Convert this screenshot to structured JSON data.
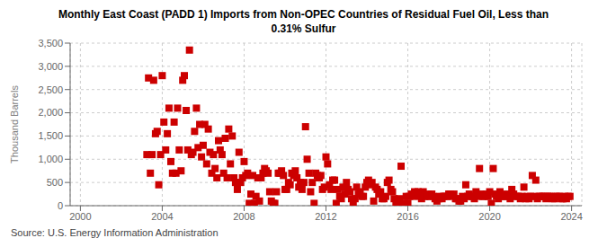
{
  "chart_data": {
    "type": "scatter",
    "title": "Monthly East Coast (PADD 1) Imports from Non-OPEC Countries of Residual Fuel Oil, Less than\n0.31% Sulfur",
    "ylabel": "Thousand Barrels",
    "source": "Source: U.S. Energy Information Administration",
    "color": "#cc0000",
    "marker": "square",
    "grid": true,
    "xlim": [
      1999.5,
      2024.5
    ],
    "xticks": [
      2000,
      2004,
      2008,
      2012,
      2016,
      2020,
      2024
    ],
    "ylim": [
      0,
      3500
    ],
    "yticks": [
      0,
      500,
      {
        "value": 1000,
        "label": "1,000"
      },
      {
        "value": 1500,
        "label": "1,500"
      },
      {
        "value": 2000,
        "label": "2,000"
      },
      {
        "value": 2500,
        "label": "2,500"
      },
      {
        "value": 3000,
        "label": "3,000"
      },
      {
        "value": 3500,
        "label": "3,500"
      }
    ],
    "x": [
      2003.25,
      2003.33,
      2003.42,
      2003.5,
      2003.58,
      2003.67,
      2003.75,
      2003.83,
      2003.92,
      2004.0,
      2004.08,
      2004.17,
      2004.25,
      2004.33,
      2004.42,
      2004.5,
      2004.58,
      2004.67,
      2004.75,
      2004.83,
      2004.92,
      2005.0,
      2005.08,
      2005.17,
      2005.25,
      2005.33,
      2005.42,
      2005.5,
      2005.58,
      2005.67,
      2005.75,
      2005.83,
      2005.92,
      2006.0,
      2006.08,
      2006.17,
      2006.25,
      2006.33,
      2006.42,
      2006.5,
      2006.58,
      2006.67,
      2006.75,
      2006.83,
      2006.92,
      2007.0,
      2007.08,
      2007.17,
      2007.25,
      2007.33,
      2007.42,
      2007.5,
      2007.58,
      2007.67,
      2007.75,
      2007.83,
      2007.92,
      2008.0,
      2008.08,
      2008.17,
      2008.25,
      2008.33,
      2008.42,
      2008.5,
      2008.58,
      2008.67,
      2008.75,
      2008.83,
      2008.92,
      2009.0,
      2009.08,
      2009.17,
      2009.25,
      2009.33,
      2009.42,
      2009.5,
      2009.58,
      2009.67,
      2009.75,
      2009.83,
      2009.92,
      2010.0,
      2010.08,
      2010.17,
      2010.25,
      2010.33,
      2010.42,
      2010.5,
      2010.58,
      2010.67,
      2010.75,
      2010.83,
      2010.92,
      2011.0,
      2011.08,
      2011.17,
      2011.25,
      2011.33,
      2011.42,
      2011.5,
      2011.58,
      2011.67,
      2011.75,
      2011.83,
      2011.92,
      2012.0,
      2012.08,
      2012.17,
      2012.25,
      2012.33,
      2012.42,
      2012.5,
      2012.58,
      2012.67,
      2012.75,
      2012.83,
      2012.92,
      2013.0,
      2013.08,
      2013.17,
      2013.25,
      2013.33,
      2013.42,
      2013.5,
      2013.58,
      2013.67,
      2013.75,
      2013.83,
      2013.92,
      2014.0,
      2014.08,
      2014.17,
      2014.25,
      2014.33,
      2014.42,
      2014.5,
      2014.58,
      2014.67,
      2014.75,
      2014.83,
      2014.92,
      2015.0,
      2015.08,
      2015.17,
      2015.25,
      2015.33,
      2015.42,
      2015.5,
      2015.58,
      2015.67,
      2015.75,
      2015.83,
      2015.92,
      2016.0,
      2016.08,
      2016.17,
      2016.25,
      2016.33,
      2016.42,
      2016.5,
      2016.58,
      2016.67,
      2016.75,
      2016.83,
      2016.92,
      2017.0,
      2017.08,
      2017.17,
      2017.25,
      2017.33,
      2017.42,
      2017.5,
      2017.58,
      2017.67,
      2017.75,
      2017.83,
      2017.92,
      2018.0,
      2018.08,
      2018.17,
      2018.25,
      2018.33,
      2018.42,
      2018.5,
      2018.58,
      2018.67,
      2018.75,
      2018.83,
      2018.92,
      2019.0,
      2019.08,
      2019.17,
      2019.25,
      2019.33,
      2019.42,
      2019.5,
      2019.58,
      2019.67,
      2019.75,
      2019.83,
      2019.92,
      2020.0,
      2020.08,
      2020.17,
      2020.25,
      2020.33,
      2020.42,
      2020.5,
      2020.58,
      2020.67,
      2020.75,
      2020.83,
      2020.92,
      2021.0,
      2021.08,
      2021.17,
      2021.25,
      2021.33,
      2021.42,
      2021.5,
      2021.58,
      2021.67,
      2021.75,
      2021.83,
      2021.92,
      2022.0,
      2022.08,
      2022.17,
      2022.25,
      2022.33,
      2022.42,
      2022.5,
      2022.58,
      2022.67,
      2022.75,
      2022.83,
      2022.92,
      2023.0,
      2023.08,
      2023.17,
      2023.25,
      2023.33,
      2023.42,
      2023.5,
      2023.58,
      2023.67,
      2023.75,
      2023.83,
      2023.92
    ],
    "values": [
      1100,
      2750,
      700,
      1100,
      2700,
      1550,
      1600,
      450,
      1100,
      2800,
      1800,
      1200,
      1550,
      2100,
      950,
      700,
      1800,
      700,
      2100,
      1200,
      750,
      2700,
      2800,
      2050,
      1200,
      3350,
      1100,
      1150,
      1600,
      2100,
      1250,
      1750,
      1050,
      1300,
      1750,
      900,
      1650,
      1150,
      700,
      1100,
      800,
      600,
      1400,
      1200,
      1100,
      700,
      1450,
      600,
      1650,
      900,
      1500,
      600,
      500,
      350,
      1150,
      500,
      600,
      950,
      650,
      700,
      50,
      250,
      650,
      50,
      200,
      600,
      100,
      600,
      700,
      800,
      750,
      700,
      300,
      100,
      50,
      50,
      300,
      700,
      700,
      750,
      650,
      350,
      350,
      500,
      450,
      700,
      650,
      750,
      600,
      400,
      500,
      350,
      500,
      1700,
      1000,
      700,
      300,
      500,
      50,
      700,
      650,
      600,
      650,
      350,
      400,
      1050,
      900,
      450,
      350,
      550,
      550,
      50,
      350,
      200,
      150,
      400,
      250,
      500,
      350,
      300,
      150,
      50,
      150,
      400,
      250,
      300,
      200,
      200,
      400,
      500,
      550,
      450,
      500,
      100,
      400,
      350,
      250,
      300,
      150,
      150,
      200,
      500,
      550,
      350,
      300,
      150,
      50,
      50,
      150,
      850,
      50,
      50,
      200,
      50,
      200,
      250,
      200,
      300,
      250,
      300,
      200,
      150,
      300,
      200,
      200,
      250,
      200,
      250,
      200,
      150,
      100,
      150,
      200,
      150,
      200,
      200,
      200,
      250,
      250,
      200,
      250,
      150,
      150,
      100,
      100,
      200,
      150,
      450,
      200,
      250,
      200,
      200,
      150,
      300,
      200,
      800,
      250,
      200,
      200,
      250,
      200,
      300,
      50,
      800,
      250,
      200,
      150,
      300,
      200,
      200,
      200,
      250,
      200,
      150,
      350,
      250,
      200,
      200,
      200,
      150,
      200,
      400,
      150,
      200,
      150,
      200,
      650,
      200,
      550,
      150,
      200,
      200,
      200,
      200,
      150,
      200,
      200,
      200,
      150,
      150,
      200,
      200,
      200,
      150,
      150,
      200,
      150,
      200,
      200
    ]
  }
}
